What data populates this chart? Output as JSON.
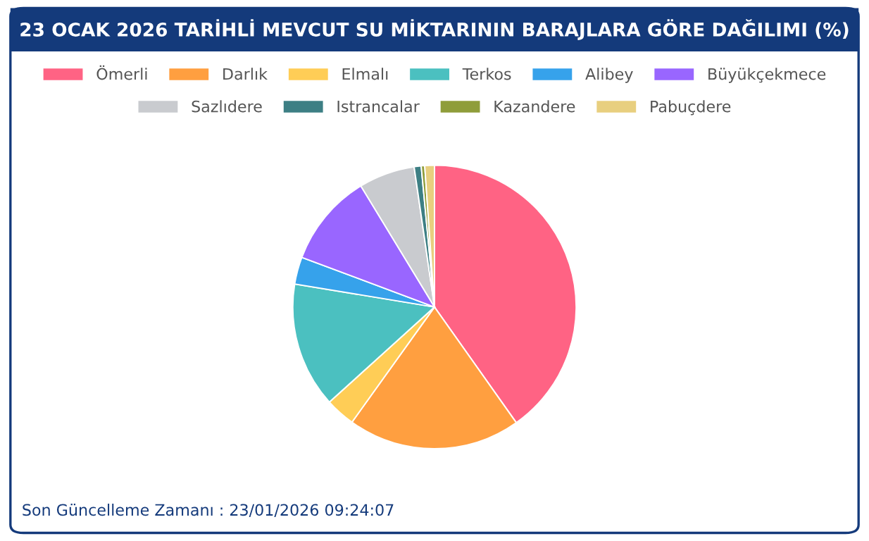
{
  "chart_data": {
    "type": "pie",
    "title": "23 OCAK 2026 TARİHLİ MEVCUT SU MİKTARININ BARAJLARA GÖRE DAĞILIMI (%)",
    "categories": [
      "Ömerli",
      "Darlık",
      "Elmalı",
      "Terkos",
      "Alibey",
      "Büyükçekmece",
      "Sazlıdere",
      "Istrancalar",
      "Kazandere",
      "Pabuçdere"
    ],
    "values": [
      40.2,
      19.7,
      3.4,
      14.3,
      3.1,
      10.6,
      6.4,
      0.8,
      0.4,
      1.1
    ],
    "colors": [
      "#ff6384",
      "#ff9f40",
      "#ffcd56",
      "#4bc0c0",
      "#36a2eb",
      "#9966ff",
      "#c9cbcf",
      "#3d7f84",
      "#8f9d3a",
      "#e8cf7f"
    ],
    "legend": "top",
    "annotations": [
      "Son Güncelleme Zamanı : 23/01/2026 09:24:07"
    ]
  }
}
